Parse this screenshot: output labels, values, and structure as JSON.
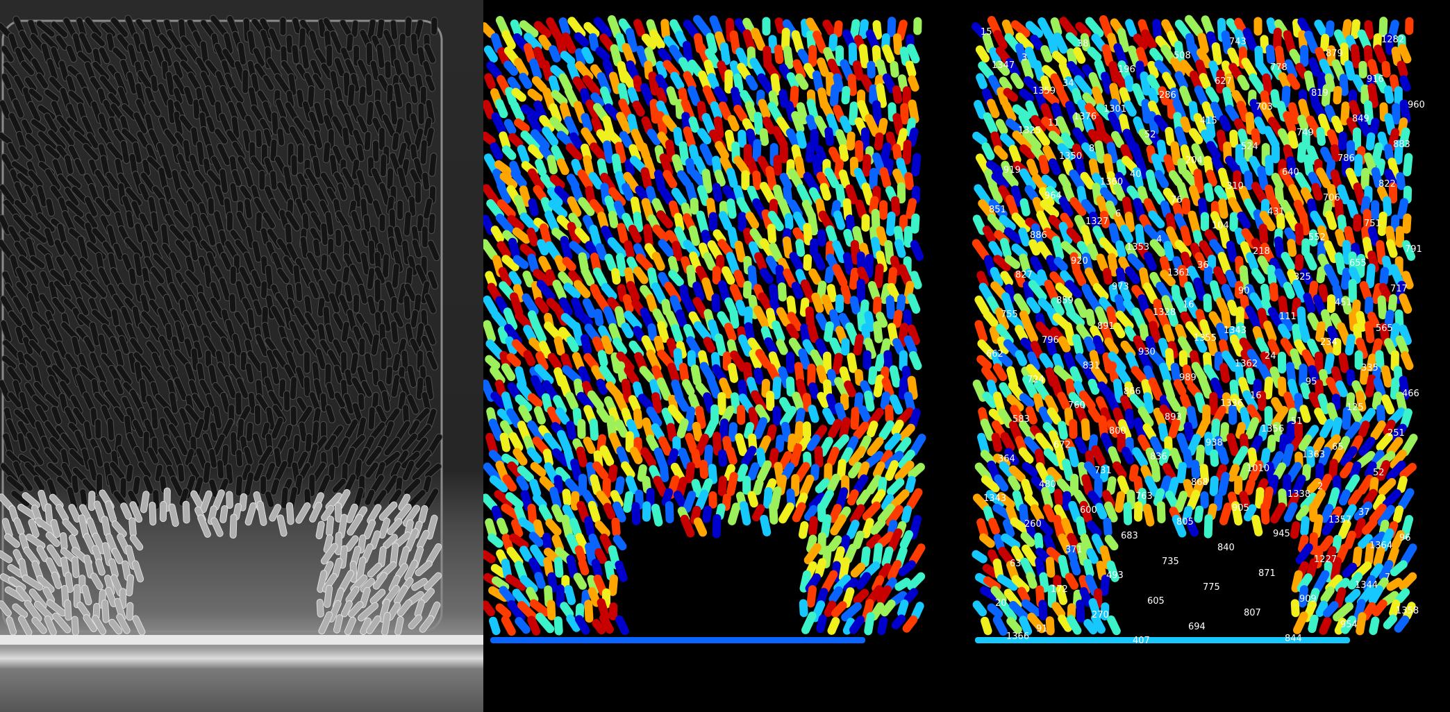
{
  "view": {
    "panels": [
      "raw-phase-contrast",
      "segmentation-mask",
      "labeled-cells"
    ],
    "colormap": [
      "#0000cc",
      "#0a64ff",
      "#17c8ff",
      "#3cf2c8",
      "#9cf05a",
      "#f0f01e",
      "#ffa500",
      "#ff3c00",
      "#c80000"
    ]
  },
  "labels": [
    "15",
    "11",
    "6",
    "16",
    "16",
    "2",
    "7",
    "3",
    "8",
    "4",
    "1343",
    "51",
    "37",
    "20",
    "34",
    "40",
    "36",
    "24",
    "65",
    "96",
    "91",
    "1301",
    "76",
    "90",
    "95",
    "52",
    "63",
    "38",
    "52",
    "104",
    "111",
    "125",
    "1343",
    "172",
    "196",
    "204",
    "218",
    "234",
    "251",
    "260",
    "270",
    "286",
    "310",
    "325",
    "335",
    "364",
    "371",
    "407",
    "415",
    "431",
    "451",
    "466",
    "480",
    "493",
    "508",
    "524",
    "552",
    "565",
    "583",
    "600",
    "605",
    "627",
    "640",
    "655",
    "662",
    "672",
    "683",
    "694",
    "703",
    "706",
    "717",
    "724",
    "731",
    "735",
    "743",
    "749",
    "751",
    "755",
    "760",
    "763",
    "775",
    "778",
    "786",
    "791",
    "796",
    "800",
    "805",
    "807",
    "819",
    "822",
    "827",
    "831",
    "836",
    "840",
    "844",
    "849",
    "851",
    "859",
    "866",
    "868",
    "871",
    "879",
    "883",
    "886",
    "891",
    "893",
    "905",
    "909",
    "916",
    "919",
    "920",
    "930",
    "938",
    "945",
    "954",
    "960",
    "964",
    "973",
    "989",
    "1010",
    "1227",
    "1282",
    "1325",
    "1327",
    "1328",
    "1336",
    "1338",
    "1344",
    "1347",
    "1350",
    "1353",
    "1355",
    "1356",
    "1357",
    "1358",
    "1359",
    "1360",
    "1361",
    "1362",
    "1363",
    "1364",
    "1366",
    "1376"
  ]
}
